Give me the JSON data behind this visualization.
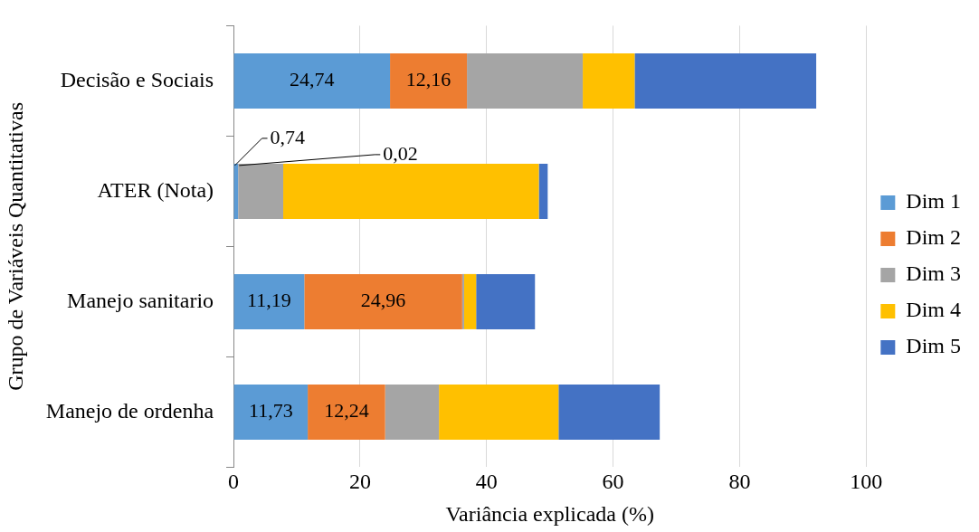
{
  "chart_data": {
    "type": "bar",
    "orientation": "horizontal",
    "stacked": true,
    "xlabel": "Variância explicada (%)",
    "ylabel": "Grupo de Variáveis Quantitativas",
    "categories": [
      "Decisão e Sociais",
      "ATER (Nota)",
      "Manejo sanitario",
      "Manejo de ordenha"
    ],
    "xlim": [
      0,
      100
    ],
    "xticks": [
      0,
      20,
      40,
      60,
      80,
      100
    ],
    "grid": "x",
    "legend": "right",
    "series": [
      {
        "name": "Dim 1",
        "color": "#5b9bd5",
        "values": [
          24.74,
          0.74,
          11.19,
          11.73
        ],
        "value_labels": [
          "24,74",
          "0,74",
          "11,19",
          "11,73"
        ]
      },
      {
        "name": "Dim 2",
        "color": "#ed7d31",
        "values": [
          12.16,
          0.02,
          24.96,
          12.24
        ],
        "value_labels": [
          "12,16",
          "0,02",
          "24,96",
          "12,24"
        ]
      },
      {
        "name": "Dim 3",
        "color": "#a5a5a5",
        "values": [
          18.3,
          7.1,
          0.3,
          8.5
        ]
      },
      {
        "name": "Dim 4",
        "color": "#ffc000",
        "values": [
          8.2,
          40.4,
          1.9,
          18.9
        ]
      },
      {
        "name": "Dim 5",
        "color": "#4472c4",
        "values": [
          28.7,
          1.4,
          9.3,
          16.0
        ]
      }
    ]
  }
}
